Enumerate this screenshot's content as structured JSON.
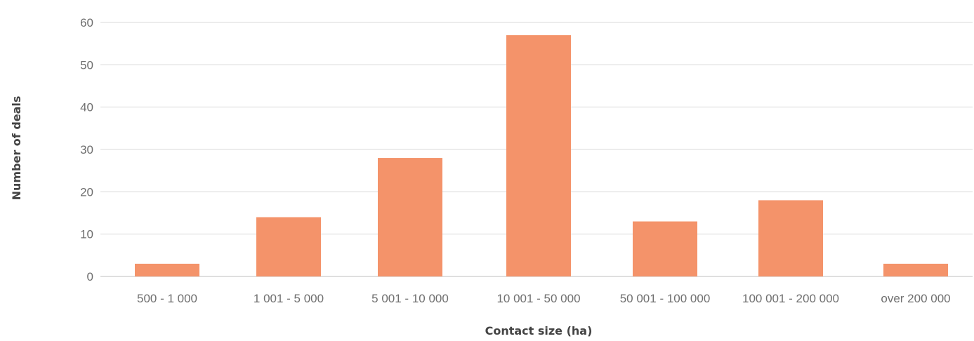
{
  "chart_data": {
    "type": "bar",
    "title": "",
    "xlabel": "Contact size (ha)",
    "ylabel": "Number of deals",
    "categories": [
      "500 - 1 000",
      "1 001 - 5 000",
      "5 001 - 10 000",
      "10 001 - 50 000",
      "50 001 - 100 000",
      "100 001 - 200 000",
      "over 200 000"
    ],
    "values": [
      3,
      14,
      28,
      57,
      13,
      18,
      3
    ],
    "ylim": [
      0,
      60
    ],
    "yticks": [
      0,
      10,
      20,
      30,
      40,
      50,
      60
    ],
    "grid": true,
    "legend": "none",
    "bar_color": "#f4936a"
  }
}
